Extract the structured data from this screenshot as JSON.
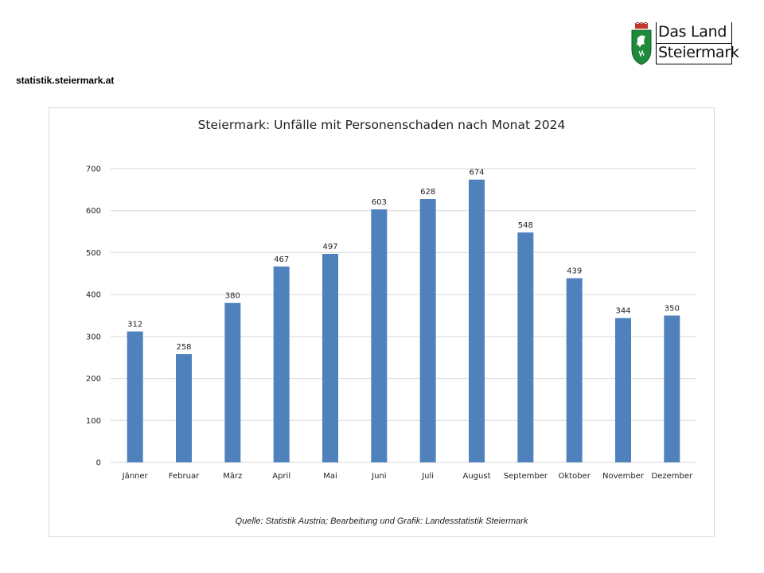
{
  "header": {
    "site_url": "statistik.steiermark.at",
    "logo": {
      "line1": "Das Land",
      "line2": "Steiermark",
      "icon": "steiermark-coat-of-arms-icon"
    }
  },
  "colors": {
    "bar": "#4f81bd",
    "grid": "#d9d9d9",
    "frame": "#d9d9d9"
  },
  "chart_data": {
    "type": "bar",
    "title": "Steiermark: Unfälle mit Personenschaden nach Monat 2024",
    "categories": [
      "Jänner",
      "Februar",
      "März",
      "April",
      "Mai",
      "Juni",
      "Juli",
      "August",
      "September",
      "Oktober",
      "November",
      "Dezember"
    ],
    "values": [
      312,
      258,
      380,
      467,
      497,
      603,
      628,
      674,
      548,
      439,
      344,
      350
    ],
    "xlabel": "",
    "ylabel": "",
    "ylim": [
      0,
      700
    ],
    "yticks": [
      0,
      100,
      200,
      300,
      400,
      500,
      600,
      700
    ],
    "grid": true,
    "data_labels": true,
    "legend": "none",
    "source": "Quelle: Statistik Austria; Bearbeitung und Grafik: Landesstatistik Steiermark"
  }
}
